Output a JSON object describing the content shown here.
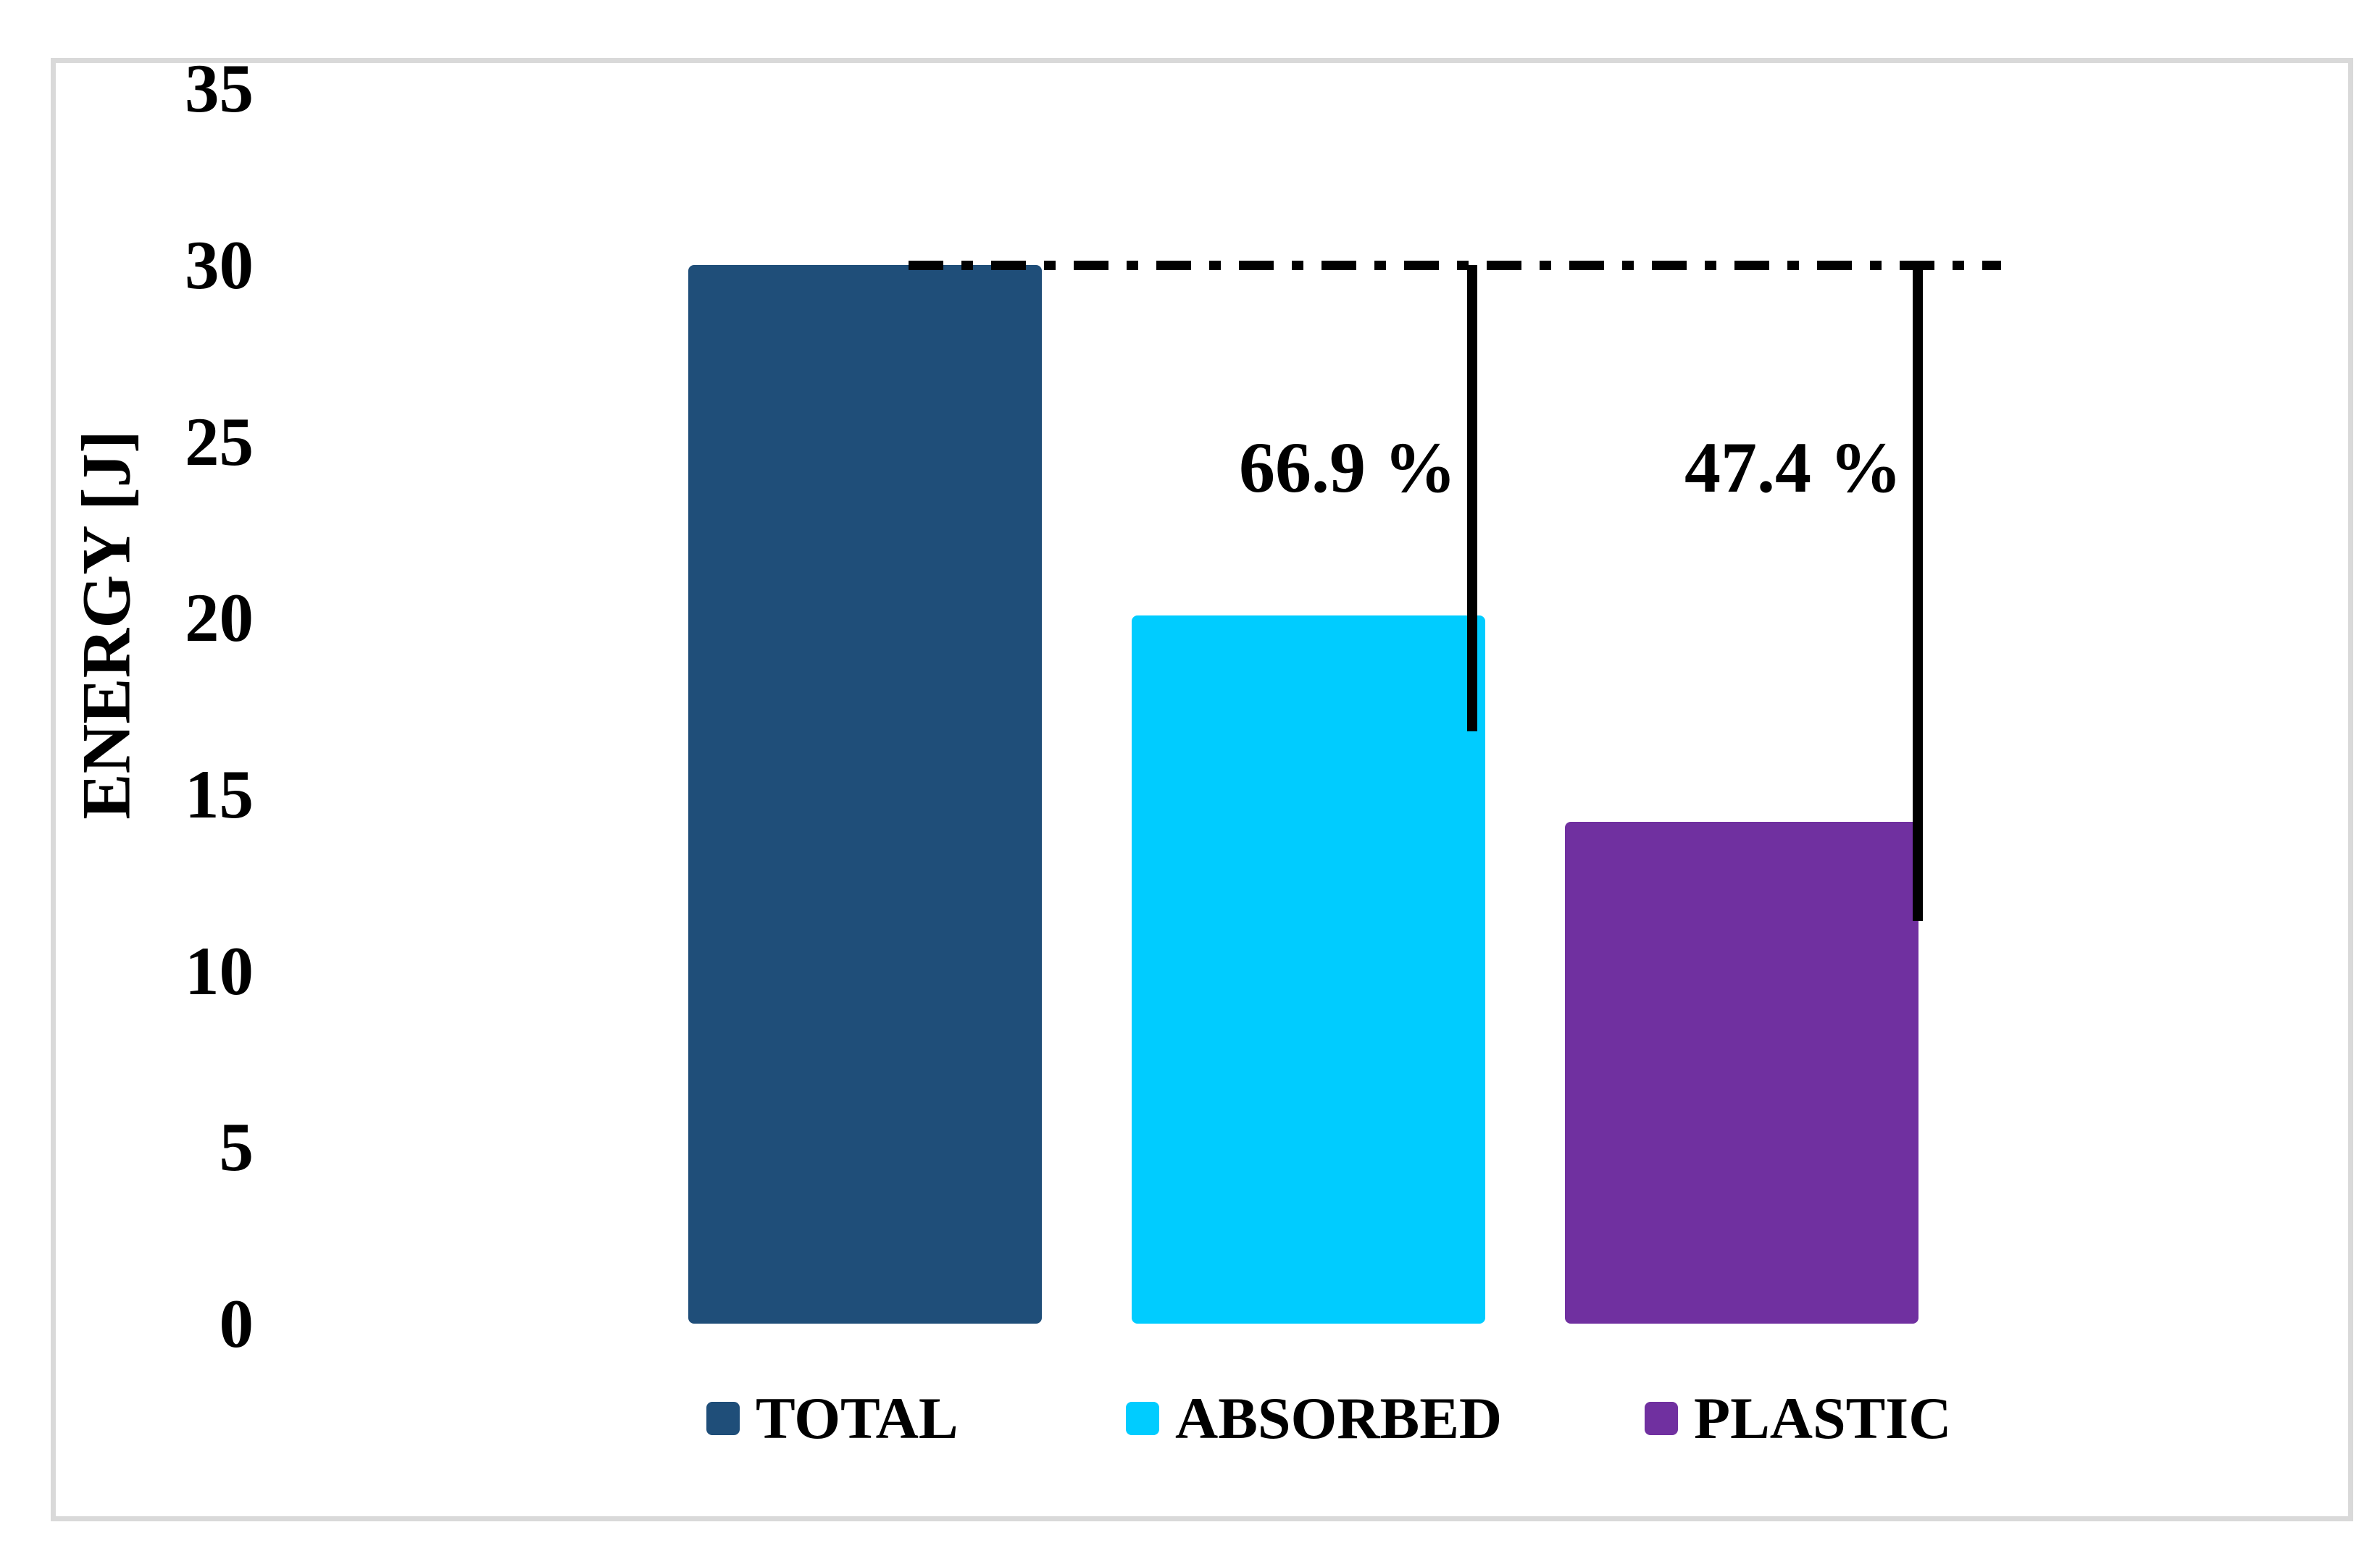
{
  "figure": {
    "kind": "excel-style column chart",
    "background": "#ffffff",
    "frame_border_color": "#D9D9D9"
  },
  "chart_data": {
    "type": "bar",
    "title": "",
    "xlabel": "",
    "ylabel": "ENERGY [J]",
    "categories": [
      "TOTAL",
      "ABSORBED",
      "PLASTIC"
    ],
    "values": [
      30,
      20.07,
      14.22
    ],
    "colors": [
      "#1F4E79",
      "#00CCFF",
      "#7030A0"
    ],
    "ylim": [
      0,
      35
    ],
    "yticks": [
      0,
      5,
      10,
      15,
      20,
      25,
      30,
      35
    ],
    "grid": false,
    "legend_position": "bottom",
    "reference_line": {
      "value": 30,
      "style": "dash-dot",
      "color": "#000000"
    },
    "annotations": [
      {
        "label": "66.9 %",
        "applies_to": "ABSORBED",
        "percent_of_total": 66.9
      },
      {
        "label": "47.4 %",
        "applies_to": "PLASTIC",
        "percent_of_total": 47.4
      }
    ]
  },
  "legend": {
    "items": [
      {
        "label": "TOTAL",
        "color": "#1F4E79"
      },
      {
        "label": "ABSORBED",
        "color": "#00CCFF"
      },
      {
        "label": "PLASTIC",
        "color": "#7030A0"
      }
    ]
  }
}
